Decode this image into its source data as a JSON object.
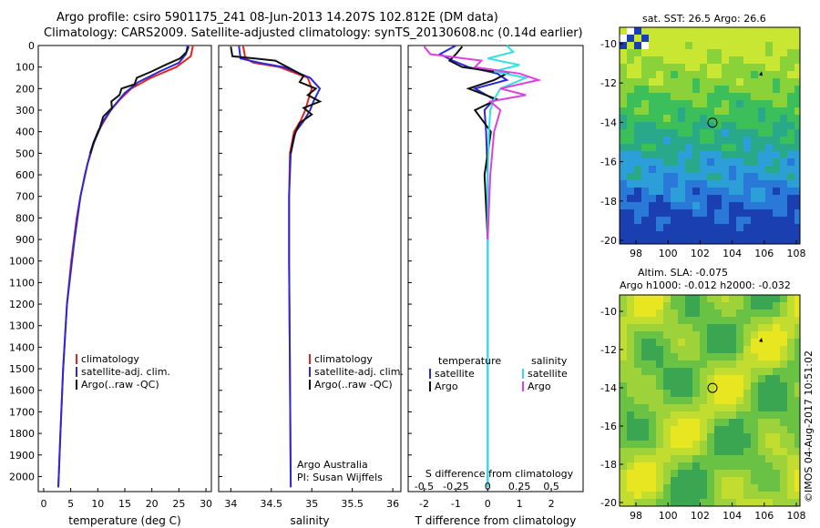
{
  "titles": {
    "line1": "Argo profile: csiro 5901175_241 08-Jun-2013 14.207S 102.812E (DM data)",
    "line2": "Climatology: CARS2009. Satellite-adjusted climatology: synTS_20130608.nc (0.14d earlier)"
  },
  "colors": {
    "climatology": "#e8231c",
    "satellite": "#2a2ad6",
    "argo": "#111111",
    "sal_sat": "#33e0e0",
    "sal_argo": "#e040e0"
  },
  "sst_panel": {
    "title": "sat. SST: 26.5  Argo: 26.6"
  },
  "sla_panel": {
    "title": "Altim. SLA: -0.075",
    "subtitle": "Argo h1000: -0.012  h2000: -0.032"
  },
  "map_ticks": {
    "x": [
      "98",
      "100",
      "102",
      "104",
      "106",
      "108"
    ],
    "sst_y": [
      "-10",
      "-12",
      "-14",
      "-16",
      "-18",
      "-20"
    ],
    "sla_y": [
      "-10",
      "-12",
      "-14",
      "-16",
      "-18",
      "-20"
    ]
  },
  "footer": {
    "credit": "©IMOS 04-Aug-2017 10:51:02"
  },
  "chart_data": [
    {
      "type": "line",
      "name": "temperature",
      "xlabel": "temperature (deg C)",
      "ylabel": "",
      "xlim": [
        -1,
        31
      ],
      "ylim": [
        2070,
        0
      ],
      "xticks": [
        "0",
        "5",
        "10",
        "15",
        "20",
        "25",
        "30"
      ],
      "yticks": [
        "0",
        "100",
        "200",
        "300",
        "400",
        "500",
        "600",
        "700",
        "800",
        "900",
        "1000",
        "1100",
        "1200",
        "1300",
        "1400",
        "1500",
        "1600",
        "1700",
        "1800",
        "1900",
        "2000"
      ],
      "legend": [
        "climatology",
        "satellite-adj. clim.",
        "Argo(..raw -QC)"
      ],
      "series": [
        {
          "name": "climatology",
          "depth": [
            0,
            50,
            100,
            150,
            200,
            250,
            300,
            400,
            500,
            600,
            700,
            800,
            1000,
            1200,
            1500,
            1800,
            2050
          ],
          "values": [
            27.6,
            27.2,
            24.5,
            19.8,
            16.2,
            14.1,
            12.4,
            10.0,
            8.6,
            7.6,
            6.8,
            6.1,
            5.1,
            4.3,
            3.6,
            3.1,
            2.7
          ]
        },
        {
          "name": "satellite-adj. clim.",
          "depth": [
            0,
            40,
            80,
            120,
            170,
            220,
            280,
            350,
            450,
            550,
            700,
            900,
            1200,
            1500,
            1800,
            2050
          ],
          "values": [
            26.6,
            26.3,
            25.0,
            21.5,
            17.5,
            15.0,
            13.0,
            11.0,
            9.3,
            8.1,
            6.8,
            5.7,
            4.3,
            3.6,
            3.1,
            2.7
          ]
        },
        {
          "name": "Argo(..raw -QC)",
          "depth": [
            5,
            30,
            60,
            90,
            120,
            150,
            180,
            200,
            230,
            260,
            290,
            330,
            380,
            450,
            500
          ],
          "values": [
            26.8,
            26.4,
            25.2,
            22.5,
            20.0,
            17.2,
            16.8,
            14.4,
            14.0,
            12.5,
            12.6,
            11.0,
            10.4,
            9.2,
            8.6
          ]
        }
      ]
    },
    {
      "type": "line",
      "name": "salinity",
      "xlabel": "salinity",
      "xlim": [
        33.85,
        36.1
      ],
      "ylim": [
        2070,
        0
      ],
      "xticks": [
        "34",
        "34.5",
        "35",
        "35.5",
        "36"
      ],
      "legend": [
        "climatology",
        "satellite-adj. clim.",
        "Argo(..raw -QC)"
      ],
      "annotation": [
        "Argo Australia",
        "PI: Susan Wijffels"
      ],
      "series": [
        {
          "name": "climatology",
          "depth": [
            0,
            60,
            80,
            100,
            150,
            200,
            260,
            300,
            350,
            400,
            500,
            700,
            1000,
            1500,
            2050
          ],
          "values": [
            34.15,
            34.18,
            34.28,
            34.6,
            34.95,
            35.0,
            34.95,
            34.92,
            34.86,
            34.78,
            34.73,
            34.72,
            34.72,
            34.73,
            34.74
          ]
        },
        {
          "name": "satellite-adj. clim.",
          "depth": [
            0,
            60,
            80,
            100,
            150,
            200,
            260,
            300,
            350,
            400,
            500,
            700,
            1000,
            1500,
            2050
          ],
          "values": [
            34.1,
            34.12,
            34.35,
            34.65,
            34.98,
            35.1,
            35.02,
            34.98,
            34.9,
            34.8,
            34.74,
            34.72,
            34.72,
            34.73,
            34.74
          ]
        },
        {
          "name": "Argo(..raw -QC)",
          "depth": [
            5,
            50,
            60,
            70,
            100,
            140,
            170,
            200,
            230,
            260,
            290,
            320,
            360,
            420,
            500
          ],
          "values": [
            34.0,
            34.02,
            34.3,
            34.55,
            34.7,
            34.9,
            34.85,
            35.05,
            34.95,
            35.1,
            34.9,
            35.0,
            34.85,
            34.78,
            34.74
          ]
        }
      ]
    },
    {
      "type": "line",
      "name": "difference",
      "xlabel": "T difference from climatology",
      "x2label": "S difference from climatology",
      "xlim": [
        -2.5,
        3.0
      ],
      "ylim": [
        2070,
        0
      ],
      "xticks": [
        "-2",
        "-1",
        "0",
        "1",
        "2"
      ],
      "x2ticks": [
        "-0.5",
        "-0.25",
        "0",
        "0.25",
        "0.5"
      ],
      "legend_headers": [
        "temperature",
        "salinity"
      ],
      "legend": [
        "satellite",
        "Argo",
        "satellite",
        "Argo"
      ],
      "series": [
        {
          "name": "T satellite",
          "depth": [
            0,
            40,
            70,
            100,
            130,
            160,
            200,
            250,
            300,
            400,
            600,
            900,
            1200,
            1600,
            2050
          ],
          "values": [
            -1.0,
            -1.5,
            -1.1,
            -0.6,
            0.3,
            0.6,
            -0.4,
            0.2,
            -0.1,
            -0.05,
            0.0,
            0.0,
            0.0,
            0.0,
            0.0
          ]
        },
        {
          "name": "T Argo",
          "depth": [
            5,
            40,
            70,
            100,
            130,
            160,
            200,
            250,
            300,
            400,
            600,
            900
          ],
          "values": [
            -0.8,
            -1.0,
            -1.2,
            -0.8,
            0.6,
            0.2,
            -0.6,
            0.3,
            -0.4,
            0.1,
            -0.1,
            0.0
          ]
        },
        {
          "name": "S satellite",
          "depth": [
            0,
            30,
            60,
            90,
            120,
            150,
            200,
            250,
            300,
            400,
            600,
            900,
            1200,
            1600,
            2050
          ],
          "values": [
            0.15,
            0.2,
            0.0,
            0.25,
            0.05,
            0.3,
            0.1,
            0.05,
            0.02,
            0.01,
            0.0,
            0.0,
            0.0,
            0.0,
            0.0
          ]
        },
        {
          "name": "S Argo",
          "depth": [
            5,
            40,
            70,
            100,
            130,
            160,
            200,
            230,
            260,
            300,
            400,
            600,
            900
          ],
          "values": [
            -0.5,
            -0.45,
            -0.05,
            -0.1,
            0.25,
            0.4,
            0.1,
            0.3,
            0.02,
            0.1,
            0.05,
            0.02,
            0.0
          ]
        }
      ]
    }
  ]
}
